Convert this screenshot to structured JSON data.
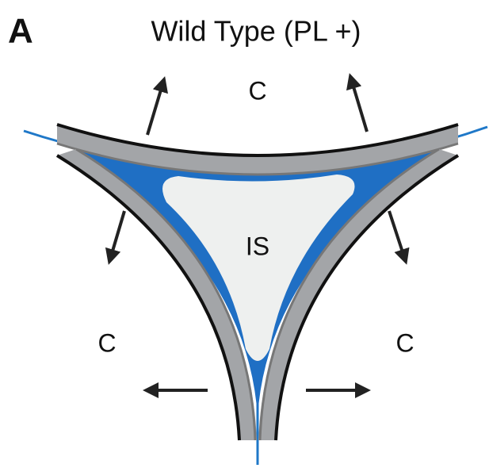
{
  "panel_label": "A",
  "title": "Wild Type (PL +)",
  "regions": {
    "top": "C",
    "left": "C",
    "right": "C",
    "center": "IS"
  }
}
